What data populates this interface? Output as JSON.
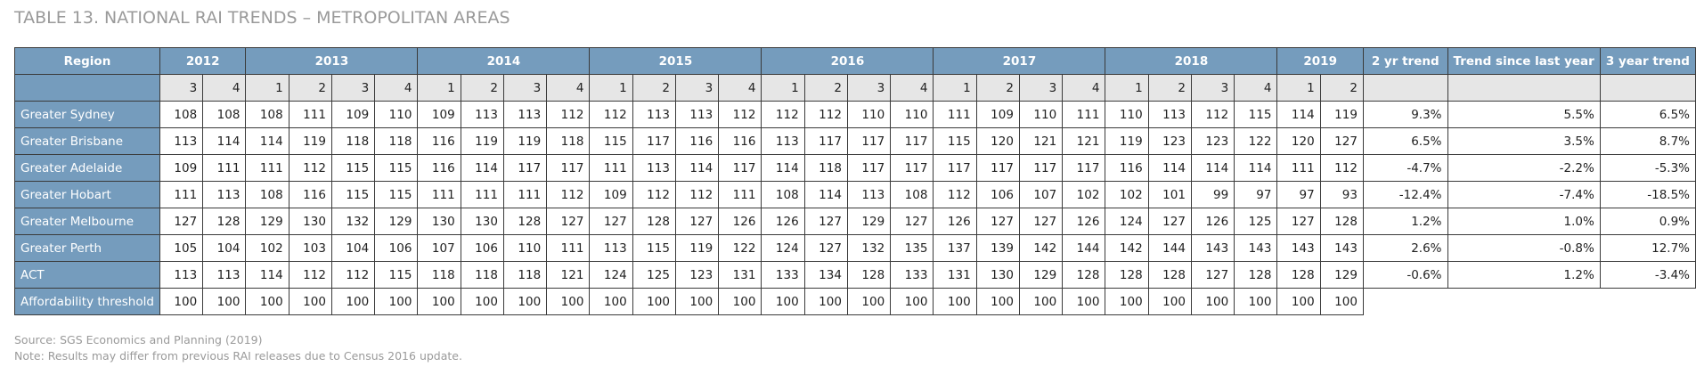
{
  "title": "TABLE 13. NATIONAL RAI TRENDS – METROPOLITAN AREAS",
  "table": {
    "region_header": "Region",
    "years": [
      {
        "year": 2012,
        "quarters": [
          3,
          4
        ]
      },
      {
        "year": 2013,
        "quarters": [
          1,
          2,
          3,
          4
        ]
      },
      {
        "year": 2014,
        "quarters": [
          1,
          2,
          3,
          4
        ]
      },
      {
        "year": 2015,
        "quarters": [
          1,
          2,
          3,
          4
        ]
      },
      {
        "year": 2016,
        "quarters": [
          1,
          2,
          3,
          4
        ]
      },
      {
        "year": 2017,
        "quarters": [
          1,
          2,
          3,
          4
        ]
      },
      {
        "year": 2018,
        "quarters": [
          1,
          2,
          3,
          4
        ]
      },
      {
        "year": 2019,
        "quarters": [
          1,
          2
        ]
      }
    ],
    "trend_headers": [
      "2 yr trend",
      "Trend since last year",
      "3 year trend"
    ],
    "rows": [
      {
        "region": "Greater Sydney",
        "values": [
          108,
          108,
          108,
          111,
          109,
          110,
          109,
          113,
          113,
          112,
          112,
          113,
          113,
          112,
          112,
          112,
          110,
          110,
          111,
          109,
          110,
          111,
          110,
          113,
          112,
          115,
          114,
          119
        ],
        "trends": [
          "9.3%",
          "5.5%",
          "6.5%"
        ]
      },
      {
        "region": "Greater Brisbane",
        "values": [
          113,
          114,
          114,
          119,
          118,
          118,
          116,
          119,
          119,
          118,
          115,
          117,
          116,
          116,
          113,
          117,
          117,
          117,
          115,
          120,
          121,
          121,
          119,
          123,
          123,
          122,
          120,
          127
        ],
        "trends": [
          "6.5%",
          "3.5%",
          "8.7%"
        ]
      },
      {
        "region": "Greater Adelaide",
        "values": [
          109,
          111,
          111,
          112,
          115,
          115,
          116,
          114,
          117,
          117,
          111,
          113,
          114,
          117,
          114,
          118,
          117,
          117,
          117,
          117,
          117,
          117,
          116,
          114,
          114,
          114,
          111,
          112
        ],
        "trends": [
          "-4.7%",
          "-2.2%",
          "-5.3%"
        ]
      },
      {
        "region": "Greater Hobart",
        "values": [
          111,
          113,
          108,
          116,
          115,
          115,
          111,
          111,
          111,
          112,
          109,
          112,
          112,
          111,
          108,
          114,
          113,
          108,
          112,
          106,
          107,
          102,
          102,
          101,
          99,
          97,
          97,
          93
        ],
        "trends": [
          "-12.4%",
          "-7.4%",
          "-18.5%"
        ]
      },
      {
        "region": "Greater Melbourne",
        "values": [
          127,
          128,
          129,
          130,
          132,
          129,
          130,
          130,
          128,
          127,
          127,
          128,
          127,
          126,
          126,
          127,
          129,
          127,
          126,
          127,
          127,
          126,
          124,
          127,
          126,
          125,
          127,
          128
        ],
        "trends": [
          "1.2%",
          "1.0%",
          "0.9%"
        ]
      },
      {
        "region": "Greater Perth",
        "values": [
          105,
          104,
          102,
          103,
          104,
          106,
          107,
          106,
          110,
          111,
          113,
          115,
          119,
          122,
          124,
          127,
          132,
          135,
          137,
          139,
          142,
          144,
          142,
          144,
          143,
          143,
          143,
          143
        ],
        "trends": [
          "2.6%",
          "-0.8%",
          "12.7%"
        ]
      },
      {
        "region": "ACT",
        "values": [
          113,
          113,
          114,
          112,
          112,
          115,
          118,
          118,
          118,
          121,
          124,
          125,
          123,
          131,
          133,
          134,
          128,
          133,
          131,
          130,
          129,
          128,
          128,
          128,
          127,
          128,
          128,
          129
        ],
        "trends": [
          "-0.6%",
          "1.2%",
          "-3.4%"
        ]
      },
      {
        "region": "Affordability threshold",
        "values": [
          100,
          100,
          100,
          100,
          100,
          100,
          100,
          100,
          100,
          100,
          100,
          100,
          100,
          100,
          100,
          100,
          100,
          100,
          100,
          100,
          100,
          100,
          100,
          100,
          100,
          100,
          100,
          100
        ]
      }
    ]
  },
  "footer": {
    "source": "Source: SGS Economics and Planning (2019)",
    "note": "Note: Results may differ from previous RAI releases due to Census 2016 update."
  }
}
